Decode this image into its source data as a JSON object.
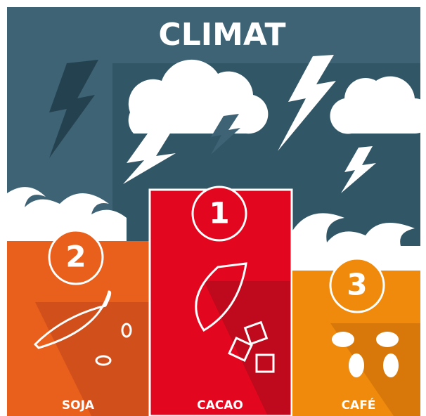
{
  "title": "CLIMAT",
  "podium": [
    {
      "rank": 2,
      "label": "SOJA"
    },
    {
      "rank": 1,
      "label": "CACAO"
    },
    {
      "rank": 3,
      "label": "CAFÉ"
    }
  ]
}
